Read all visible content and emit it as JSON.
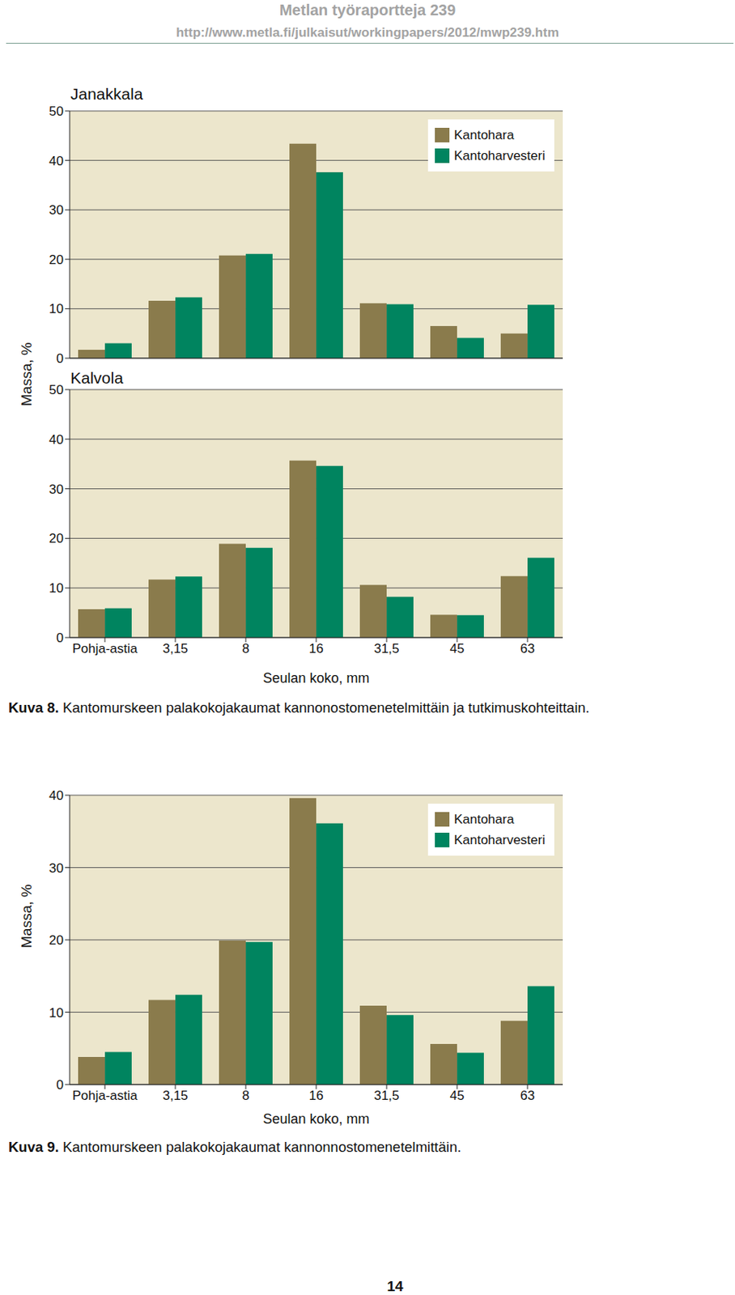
{
  "header": {
    "title": "Metlan työraportteja 239",
    "url": "http://www.metla.fi/julkaisut/workingpapers/2012/mwp239.htm"
  },
  "chart_data": [
    {
      "type": "bar",
      "title": "Janakkala",
      "ylabel": "Massa, %",
      "categories": [
        "Pohja-astia",
        "3,15",
        "8",
        "16",
        "31,5",
        "45",
        "63"
      ],
      "series": [
        {
          "name": "Kantohara",
          "color": "#8a7b4c",
          "values": [
            1.7,
            11.6,
            20.8,
            43.4,
            11.1,
            6.5,
            5.0
          ]
        },
        {
          "name": "Kantoharvesteri",
          "color": "#00845f",
          "values": [
            3.0,
            12.3,
            21.1,
            37.6,
            10.9,
            4.1,
            10.8
          ]
        }
      ],
      "ylim": [
        0,
        50
      ],
      "yticks": [
        0,
        10,
        20,
        30,
        40,
        50
      ],
      "grid": true,
      "legend": "upper right",
      "tick_labels": "y"
    },
    {
      "type": "bar",
      "title": "Kalvola",
      "xlabel": "Seulan koko, mm",
      "categories": [
        "Pohja-astia",
        "3,15",
        "8",
        "16",
        "31,5",
        "45",
        "63"
      ],
      "series": [
        {
          "name": "Kantohara",
          "color": "#8a7b4c",
          "values": [
            5.7,
            11.7,
            18.9,
            35.7,
            10.6,
            4.6,
            12.4
          ]
        },
        {
          "name": "Kantoharvesteri",
          "color": "#00845f",
          "values": [
            5.9,
            12.3,
            18.1,
            34.6,
            8.2,
            4.5,
            16.1
          ]
        }
      ],
      "ylim": [
        0,
        50
      ],
      "yticks": [
        0,
        10,
        20,
        30,
        40,
        50
      ],
      "grid": true
    },
    {
      "type": "bar",
      "xlabel": "Seulan koko, mm",
      "ylabel": "Massa, %",
      "categories": [
        "Pohja-astia",
        "3,15",
        "8",
        "16",
        "31,5",
        "45",
        "63"
      ],
      "series": [
        {
          "name": "Kantohara",
          "color": "#8a7b4c",
          "values": [
            3.8,
            11.7,
            19.9,
            39.6,
            10.9,
            5.6,
            8.8
          ]
        },
        {
          "name": "Kantoharvesteri",
          "color": "#00845f",
          "values": [
            4.5,
            12.4,
            19.7,
            36.1,
            9.6,
            4.4,
            13.6
          ]
        }
      ],
      "ylim": [
        0,
        40
      ],
      "yticks": [
        0,
        10,
        20,
        30,
        40
      ],
      "grid": true,
      "legend": "upper right"
    }
  ],
  "figures": [
    {
      "label": "Kuva 8.",
      "text": "Kantomurskeen palakokojakaumat kannonostomenetelmittäin ja tutkimuskohteittain."
    },
    {
      "label": "Kuva 9.",
      "text": "Kantomurskeen palakokojakaumat kannonnostomenetelmittäin."
    }
  ],
  "page_number": 14
}
